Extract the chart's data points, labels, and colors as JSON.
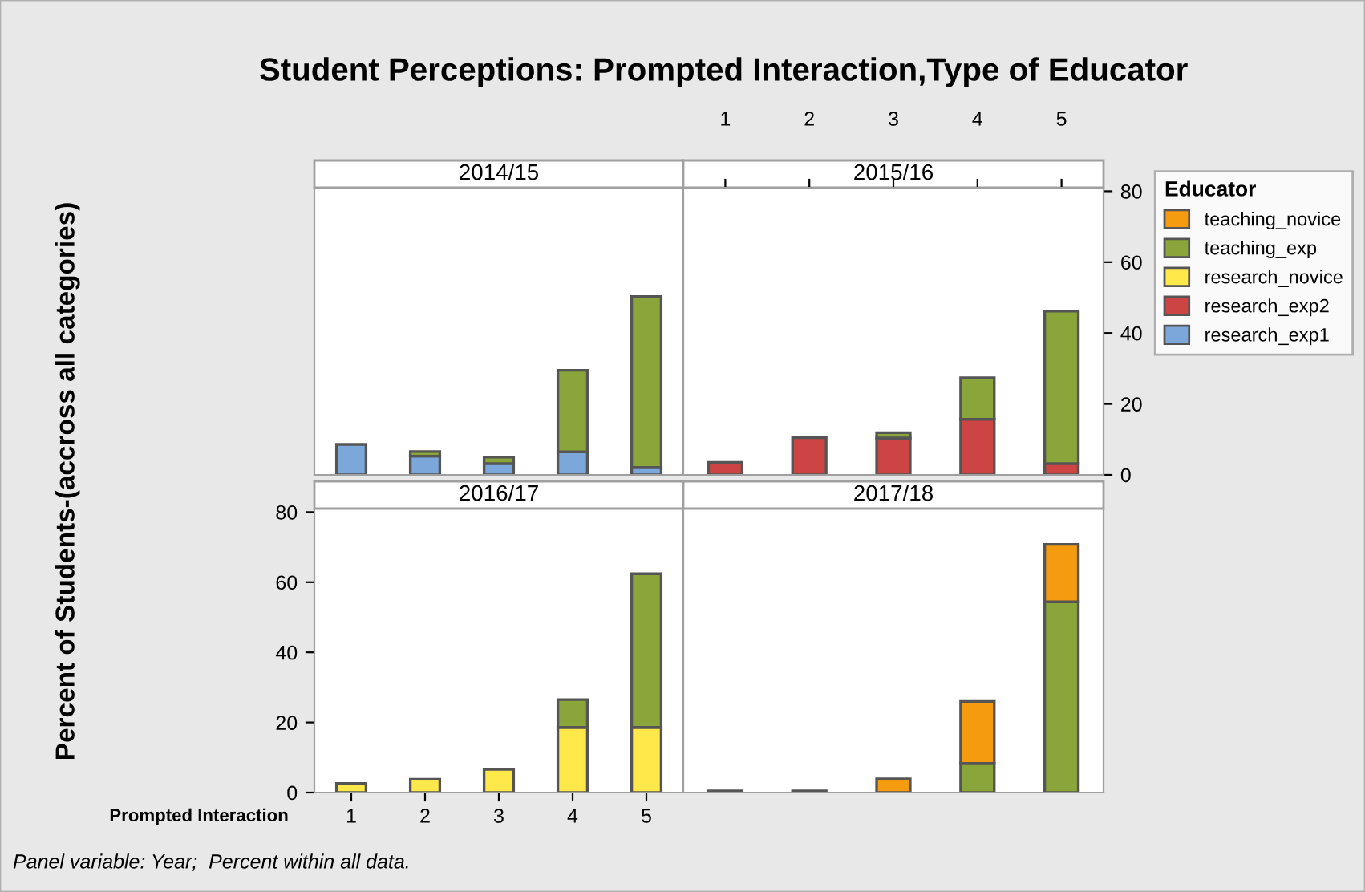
{
  "chart_data": [
    {
      "type": "bar",
      "stacked": true,
      "title": "Student Perceptions: Prompted Interaction,Type of Educator",
      "subtitle": "2014/15",
      "annotations": [
        "Panel variable: Year;  Percent within all data."
      ],
      "categories": [
        "1",
        "2",
        "3",
        "4",
        "5"
      ],
      "ylim": [
        0,
        81
      ],
      "yticks": [
        0,
        20,
        40,
        60,
        80
      ],
      "tick_labels": false,
      "grid": false,
      "series": [
        {
          "color": "#7ba7db",
          "values": [
            8.6,
            5.3,
            3.2,
            6.5,
            2.1
          ]
        },
        {
          "color": "#8aa63a",
          "values": [
            null,
            1.3,
            1.8,
            23.0,
            48.2
          ]
        }
      ]
    },
    {
      "type": "bar",
      "stacked": true,
      "subtitle": "2015/16",
      "legend_title": "Educator",
      "legend": "right",
      "categories": [
        "1",
        "2",
        "3",
        "4",
        "5"
      ],
      "ylim": [
        0,
        81
      ],
      "yticks": [
        0,
        20,
        40,
        60,
        80
      ],
      "grid": false,
      "series": [
        {
          "name": "research_exp1",
          "color": "#7ba7db",
          "values": [
            null,
            null,
            null,
            null,
            null
          ]
        },
        {
          "name": "research_exp2",
          "color": "#cc4444",
          "values": [
            3.5,
            10.5,
            10.4,
            15.7,
            3.2
          ]
        },
        {
          "name": "research_novice",
          "color": "#ffe84a",
          "values": [
            null,
            null,
            null,
            null,
            null
          ]
        },
        {
          "name": "teaching_exp",
          "color": "#8aa63a",
          "values": [
            null,
            null,
            1.5,
            11.7,
            43.0
          ]
        },
        {
          "name": "teaching_novice",
          "color": "#f59b0f",
          "values": [
            null,
            null,
            null,
            null,
            null
          ]
        }
      ]
    },
    {
      "type": "bar",
      "stacked": true,
      "subtitle": "2016/17",
      "xlabel": "Prompted Interaction",
      "ylabel": "Percent of Students-(accross all categories)",
      "categories": [
        "1",
        "2",
        "3",
        "4",
        "5"
      ],
      "ylim": [
        0,
        81
      ],
      "yticks": [
        0,
        20,
        40,
        60,
        80
      ],
      "grid": false,
      "series": [
        {
          "color": "#ffe84a",
          "values": [
            2.6,
            3.8,
            6.6,
            18.6,
            18.6
          ]
        },
        {
          "color": "#8aa63a",
          "values": [
            null,
            null,
            null,
            7.9,
            43.8
          ]
        }
      ]
    },
    {
      "type": "bar",
      "stacked": true,
      "subtitle": "2017/18",
      "categories": [
        "1",
        "2",
        "3",
        "4",
        "5"
      ],
      "ylim": [
        0,
        81
      ],
      "yticks": [
        0,
        20,
        40,
        60,
        80
      ],
      "tick_labels": false,
      "grid": false,
      "series": [
        {
          "color": "#8aa63a",
          "values": [
            null,
            null,
            null,
            8.3,
            54.4
          ]
        },
        {
          "color": "#f59b0f",
          "values": [
            0.5,
            0.5,
            3.9,
            17.7,
            16.4
          ]
        }
      ]
    }
  ]
}
